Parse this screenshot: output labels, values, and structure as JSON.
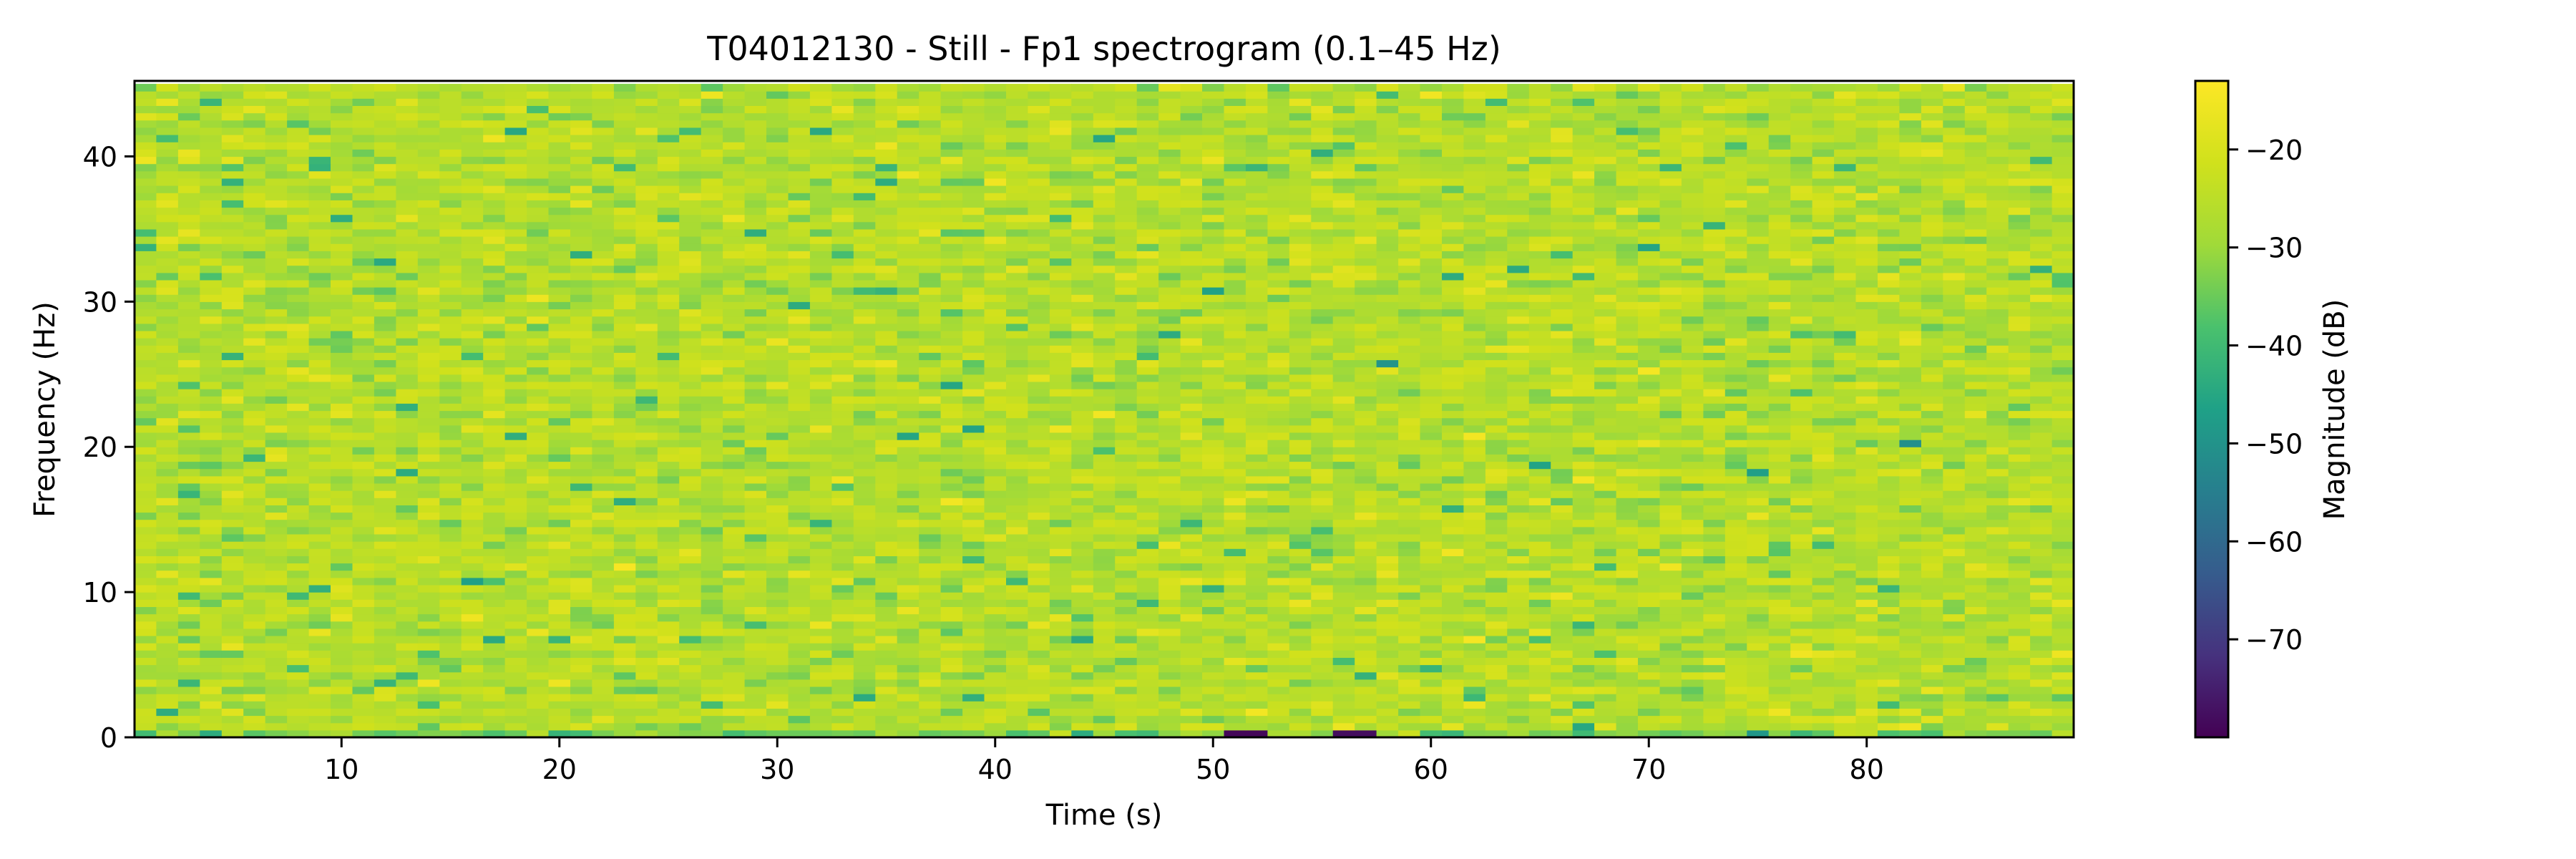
{
  "chart_data": {
    "type": "heatmap",
    "title": "T04012130 - Still - Fp1 spectrogram (0.1–45 Hz)",
    "xlabel": "Time (s)",
    "ylabel": "Frequency (Hz)",
    "colorbar_label": "Magnitude (dB)",
    "colormap": "viridis",
    "xlim": [
      0.5,
      89.5
    ],
    "ylim": [
      0,
      45.2
    ],
    "x_ticks": [
      10,
      20,
      30,
      40,
      50,
      60,
      70,
      80
    ],
    "y_ticks": [
      0,
      10,
      20,
      30,
      40
    ],
    "clim": [
      -80,
      -13
    ],
    "colorbar_ticks": [
      -20,
      -30,
      -40,
      -50,
      -60,
      -70
    ],
    "time_bins": 89,
    "freq_bins": 90,
    "freq_step_hz": 0.5,
    "magnitude_summary": {
      "typical_db_range": [
        -34,
        -18
      ],
      "mean_db": -26,
      "lowest_row_min_db": -79,
      "note": "dense noise-like field, mostly green-yellow; darkest cells along the 0 Hz row near t≈51 s and t≈56 s"
    },
    "grid": false,
    "colorbar_placement": "right"
  }
}
